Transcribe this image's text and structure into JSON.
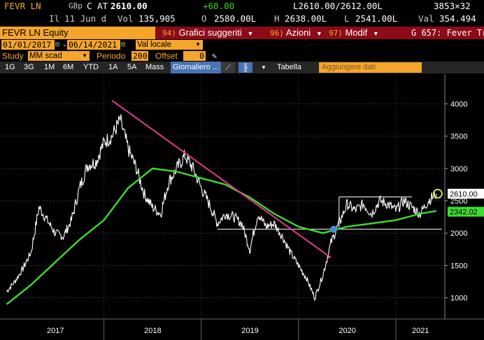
{
  "quote": {
    "ticker": "FEVR LN",
    "currency": "GBp",
    "c_at": "C AT",
    "last": "2610.00",
    "change": "+68.00",
    "bid_ask": "L2610.00/2612.00L",
    "size": "3853×32",
    "date_prefix": "Il",
    "date": "11 Jun d",
    "vol_label": "Vol",
    "volume": "135,905",
    "open_label": "O",
    "open": "2580.00L",
    "high_label": "H",
    "high": "2638.00L",
    "low_label": "L",
    "low": "2541.00L",
    "val_label": "Val",
    "value": "354.494"
  },
  "toolbar": {
    "security": "FEVR LN Equity",
    "menus": [
      {
        "num": "94)",
        "label": "Grafici suggeriti"
      },
      {
        "num": "96)",
        "label": "Azioni"
      },
      {
        "num": "97)",
        "label": "Modif"
      }
    ],
    "function_title": "G 657: Fever Tr"
  },
  "dates": {
    "start": "01/01/2017",
    "end": "06/14/2021",
    "currency": "Val locale"
  },
  "study": {
    "label": "Study",
    "value": "MM scad",
    "period_label": "Periodo",
    "period": "200",
    "offset_label": "Offset",
    "offset": "0"
  },
  "ranges": [
    "1G",
    "3G",
    "1M",
    "6M",
    "YTD",
    "1A",
    "5A",
    "Mass"
  ],
  "frequency": "Giornaliero",
  "table_label": "Tabella",
  "add_data": "Aggiungere dati",
  "chart_data": {
    "type": "line",
    "y_ticks": [
      1000,
      1500,
      2000,
      2500,
      3000,
      3500,
      4000
    ],
    "x_labels": [
      "2017",
      "2018",
      "2019",
      "2020",
      "2021"
    ],
    "ylim": [
      780,
      4350
    ],
    "last_price_label": "2610.00",
    "ma_label": "2342.02",
    "series": [
      {
        "color": "#ffffff",
        "x": [
          "2017-01",
          "2017-02",
          "2017-03",
          "2017-04",
          "2017-05",
          "2017-06",
          "2017-07",
          "2017-08",
          "2017-09",
          "2017-10",
          "2017-11",
          "2017-12",
          "2018-01",
          "2018-02",
          "2018-03",
          "2018-04",
          "2018-05",
          "2018-06",
          "2018-07",
          "2018-08",
          "2018-09",
          "2018-10",
          "2018-11",
          "2018-12",
          "2019-01",
          "2019-02",
          "2019-03",
          "2019-04",
          "2019-05",
          "2019-06",
          "2019-07",
          "2019-08",
          "2019-09",
          "2019-10",
          "2019-11",
          "2019-12",
          "2020-01",
          "2020-02",
          "2020-03",
          "2020-04",
          "2020-05",
          "2020-06",
          "2020-07",
          "2020-08",
          "2020-09",
          "2020-10",
          "2020-11",
          "2020-12",
          "2021-01",
          "2021-02",
          "2021-03",
          "2021-04",
          "2021-05",
          "2021-06"
        ],
        "values": [
          1100,
          1250,
          1450,
          1700,
          2400,
          2200,
          2000,
          1950,
          2200,
          2700,
          3050,
          3100,
          3400,
          3500,
          3750,
          3300,
          3000,
          2600,
          2400,
          2300,
          2800,
          3000,
          3200,
          3000,
          2700,
          2450,
          2150,
          2300,
          2250,
          2150,
          1750,
          2300,
          2100,
          2150,
          1950,
          1700,
          1500,
          1300,
          1000,
          1350,
          1850,
          2150,
          2450,
          2350,
          2450,
          2300,
          2500,
          2450,
          2350,
          2500,
          2400,
          2300,
          2500,
          2610
        ]
      },
      {
        "color": "#3ddc2d",
        "x": [
          "2017-01",
          "2017-04",
          "2017-07",
          "2017-10",
          "2018-01",
          "2018-04",
          "2018-07",
          "2018-10",
          "2019-01",
          "2019-04",
          "2019-07",
          "2019-10",
          "2020-01",
          "2020-04",
          "2020-07",
          "2020-10",
          "2021-01",
          "2021-04",
          "2021-06"
        ],
        "values": [
          900,
          1200,
          1550,
          1900,
          2200,
          2700,
          3000,
          2950,
          2850,
          2750,
          2550,
          2300,
          2100,
          2000,
          2100,
          2150,
          2200,
          2300,
          2342
        ]
      }
    ],
    "trendline": {
      "color": "#e23a8a",
      "from": [
        "2018-02",
        4050
      ],
      "to": [
        "2020-05",
        1620
      ]
    },
    "support_level": 2060,
    "resistance_level": 2560
  }
}
